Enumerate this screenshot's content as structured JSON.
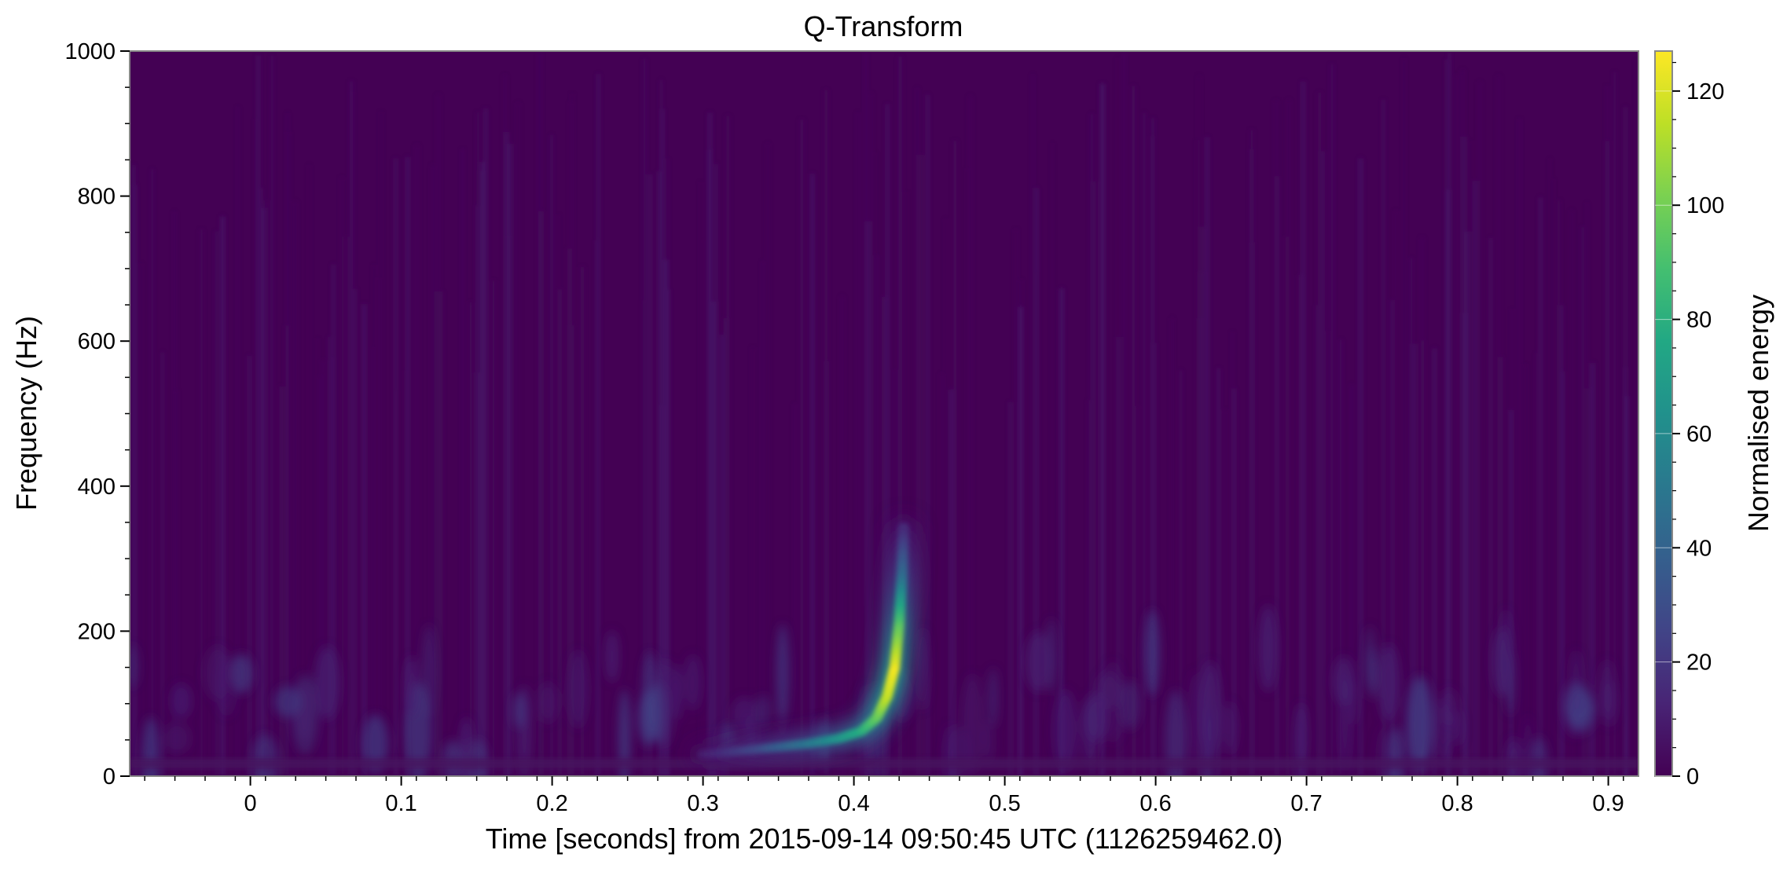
{
  "chart_data": {
    "type": "heatmap",
    "title": "Q-Transform",
    "xlabel": "Time [seconds] from 2015-09-14 09:50:45 UTC (1126259462.0)",
    "ylabel": "Frequency (Hz)",
    "colorbar_label": "Normalised energy",
    "colormap": "viridis",
    "xlim": [
      -0.08,
      0.92
    ],
    "ylim": [
      0,
      1000
    ],
    "clim": [
      0,
      127
    ],
    "x_ticks": [
      0,
      0.1,
      0.2,
      0.3,
      0.4,
      0.5,
      0.6,
      0.7,
      0.8,
      0.9
    ],
    "x_tick_labels": [
      "0",
      "0.1",
      "0.2",
      "0.3",
      "0.4",
      "0.5",
      "0.6",
      "0.7",
      "0.8",
      "0.9"
    ],
    "y_ticks": [
      0,
      200,
      400,
      600,
      800,
      1000
    ],
    "y_tick_labels": [
      "0",
      "200",
      "400",
      "600",
      "800",
      "1000"
    ],
    "colorbar_ticks": [
      0,
      20,
      40,
      60,
      80,
      100,
      120
    ],
    "colorbar_tick_labels": [
      "0",
      "20",
      "40",
      "60",
      "80",
      "100",
      "120"
    ],
    "background_energy": 3,
    "chirp": {
      "description": "bright track rising in frequency with time",
      "points": [
        {
          "t": 0.3,
          "f": 30,
          "energy": 10
        },
        {
          "t": 0.34,
          "f": 38,
          "energy": 30
        },
        {
          "t": 0.37,
          "f": 45,
          "energy": 50
        },
        {
          "t": 0.39,
          "f": 52,
          "energy": 65
        },
        {
          "t": 0.405,
          "f": 62,
          "energy": 78
        },
        {
          "t": 0.415,
          "f": 80,
          "energy": 95
        },
        {
          "t": 0.422,
          "f": 110,
          "energy": 115
        },
        {
          "t": 0.427,
          "f": 150,
          "energy": 125
        },
        {
          "t": 0.43,
          "f": 210,
          "energy": 95
        },
        {
          "t": 0.432,
          "f": 280,
          "energy": 45
        },
        {
          "t": 0.433,
          "f": 350,
          "energy": 12
        }
      ]
    }
  }
}
